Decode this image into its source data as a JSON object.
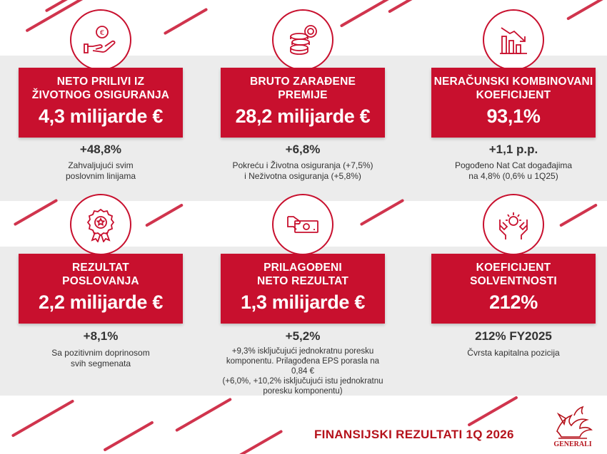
{
  "colors": {
    "brand_red": "#c8102e",
    "band_gray": "#ececec"
  },
  "cards": [
    {
      "icon": "hand-euro-icon",
      "title_lines": [
        "NETO PRILIVI IZ",
        "ŽIVOTNOG OSIGURANJA"
      ],
      "value": "4,3 milijarde €",
      "change": "+48,8%",
      "note_lines": [
        "Zahvaljujući svim",
        "poslovnim linijama"
      ]
    },
    {
      "icon": "coins-stack-icon",
      "title_lines": [
        "BRUTO ZARAĐENE",
        "PREMIJE"
      ],
      "value": "28,2 milijarde €",
      "change": "+6,8%",
      "note_lines": [
        "Pokreću i Životna osiguranja (+7,5%)",
        "i Neživotna osiguranja (+5,8%)"
      ]
    },
    {
      "icon": "chart-down-icon",
      "title_lines": [
        "NERAČUNSKI KOMBINOVANI",
        "KOEFICIJENT"
      ],
      "value": "93,1%",
      "change": "+1,1 p.p.",
      "note_lines": [
        "Pogođeno Nat Cat događajima",
        "na 4,8% (0,6% u 1Q25)"
      ]
    },
    {
      "icon": "award-badge-icon",
      "title_lines": [
        "REZULTAT",
        "POSLOVANJA"
      ],
      "value": "2,2 milijarde €",
      "change": "+8,1%",
      "note_lines": [
        "Sa pozitivnim doprinosom",
        "svih segmenata"
      ]
    },
    {
      "icon": "hand-banknote-icon",
      "title_lines": [
        "PRILAGOĐENI",
        "NETO REZULTAT"
      ],
      "value": "1,3 milijarde €",
      "change": "+5,2%",
      "note_lines": [
        "+9,3% isključujući jednokratnu poresku",
        "komponentu. Prilagođena EPS porasla na 0,84 €",
        "(+6,0%, +10,2% isključujući istu jednokratnu",
        "poresku komponentu)"
      ]
    },
    {
      "icon": "hands-light-icon",
      "title_lines": [
        "KOEFICIJENT",
        "SOLVENTNOSTI"
      ],
      "value": "212%",
      "change": "212% FY2025",
      "note_lines": [
        "Čvrsta kapitalna pozicija"
      ]
    }
  ],
  "footer": {
    "title": "FINANSIJSKI REZULTATI 1Q 2026",
    "logo_text": "GENERALI"
  }
}
